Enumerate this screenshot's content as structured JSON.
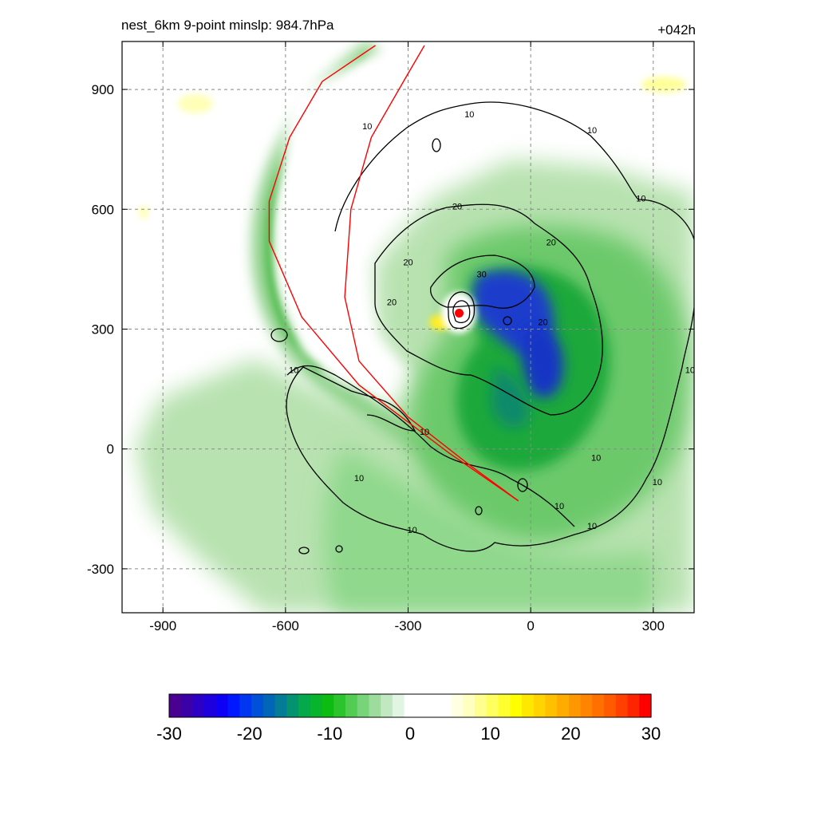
{
  "header": {
    "title": "nest_6km  9-point minslp: 984.7hPa",
    "forecast_hour": "+042h"
  },
  "colors": {
    "background": "#ffffff",
    "contour": "#000000",
    "track": "#ff0000",
    "grid": "#8a8a8a"
  },
  "chart_data": {
    "type": "heatmap",
    "title": "nest_6km  9-point minslp: 984.7hPa",
    "xlim": [
      -1000,
      400
    ],
    "ylim": [
      -410,
      1020
    ],
    "x_ticks": [
      -900,
      -600,
      -300,
      0,
      300
    ],
    "y_ticks": [
      -300,
      0,
      300,
      600,
      900
    ],
    "x_tick_labels": [
      "-900",
      "-600",
      "-300",
      "0",
      "300"
    ],
    "y_tick_labels": [
      "-300",
      "0",
      "300",
      "600",
      "900"
    ],
    "grid": true,
    "contour_levels": [
      10,
      20,
      30
    ],
    "contour_labels": [
      {
        "text": "10",
        "x": -400,
        "y": 800
      },
      {
        "text": "10",
        "x": -150,
        "y": 830
      },
      {
        "text": "10",
        "x": 150,
        "y": 790
      },
      {
        "text": "10",
        "x": 270,
        "y": 620
      },
      {
        "text": "10",
        "x": -580,
        "y": 190
      },
      {
        "text": "10",
        "x": -260,
        "y": 35
      },
      {
        "text": "10",
        "x": -420,
        "y": -80
      },
      {
        "text": "10",
        "x": -290,
        "y": -210
      },
      {
        "text": "10",
        "x": 70,
        "y": -150
      },
      {
        "text": "10",
        "x": 150,
        "y": -200
      },
      {
        "text": "10",
        "x": 310,
        "y": -90
      },
      {
        "text": "10",
        "x": 390,
        "y": 190
      },
      {
        "text": "10",
        "x": 160,
        "y": -30
      },
      {
        "text": "20",
        "x": -180,
        "y": 600
      },
      {
        "text": "20",
        "x": -300,
        "y": 460
      },
      {
        "text": "20",
        "x": -340,
        "y": 360
      },
      {
        "text": "20",
        "x": 50,
        "y": 510
      },
      {
        "text": "20",
        "x": 30,
        "y": 310
      },
      {
        "text": "30",
        "x": -120,
        "y": 430
      }
    ],
    "storm_center": {
      "x": -175,
      "y": 340
    },
    "min_slp_hpa": 984.7,
    "colorbar": {
      "min": -30,
      "max": 30,
      "ticks": [
        -30,
        -20,
        -10,
        0,
        10,
        20,
        30
      ],
      "tick_labels": [
        "-30",
        "-20",
        "-10",
        "0",
        "10",
        "20",
        "30"
      ],
      "colors": [
        "#4a0090",
        "#3b00a8",
        "#2c00c4",
        "#1e00de",
        "#0e00f4",
        "#0018ff",
        "#0036f0",
        "#0050d8",
        "#0266b8",
        "#047c96",
        "#059270",
        "#06a84c",
        "#08b42c",
        "#0cbc10",
        "#2cc42c",
        "#52cc52",
        "#78d478",
        "#9edc9e",
        "#c2e8c2",
        "#e2f4e2",
        "#ffffff",
        "#ffffff",
        "#ffffff",
        "#ffffff",
        "#ffffe2",
        "#ffffc0",
        "#ffff90",
        "#ffff60",
        "#ffff30",
        "#ffff00",
        "#ffe800",
        "#ffd400",
        "#ffc000",
        "#ffac00",
        "#ff9800",
        "#ff8400",
        "#ff7000",
        "#ff5a00",
        "#ff4000",
        "#ff2400",
        "#ff0000"
      ]
    },
    "track_lines": [
      {
        "name": "",
        "points": [
          [
            -30,
            -130
          ],
          [
            -150,
            -40
          ],
          [
            -300,
            80
          ],
          [
            -420,
            220
          ],
          [
            -455,
            380
          ],
          [
            -440,
            600
          ],
          [
            -390,
            780
          ],
          [
            -300,
            940
          ],
          [
            -260,
            1010
          ]
        ]
      },
      {
        "name": "",
        "points": [
          [
            -30,
            -130
          ],
          [
            -200,
            -10
          ],
          [
            -420,
            160
          ],
          [
            -560,
            330
          ],
          [
            -640,
            520
          ],
          [
            -640,
            620
          ],
          [
            -590,
            780
          ],
          [
            -510,
            920
          ],
          [
            -380,
            1010
          ]
        ]
      }
    ]
  }
}
